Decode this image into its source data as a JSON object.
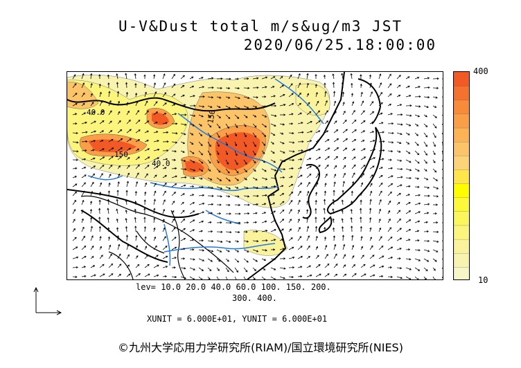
{
  "title": "U-V&Dust total m/s&ug/m3 JST",
  "timestamp": "2020/06/25.18:00:00",
  "colorbar": {
    "max_label": "400",
    "min_label": "10",
    "colors": [
      "#f7f6c9",
      "#f8f4b0",
      "#faf39b",
      "#fbf57d",
      "#fbf65c",
      "#fdf93a",
      "#fffc00",
      "#ffe54c",
      "#fdd37a",
      "#fcc468",
      "#fbb356",
      "#fa9f47",
      "#f88b3a",
      "#f5722e",
      "#f15a24"
    ]
  },
  "levels_line1": "lev= 10.0 20.0 40.0 60.0 100. 150. 200.",
  "levels_line2": "300. 400.",
  "unit_text": "XUNIT = 6.000E+01, YUNIT = 6.000E+01",
  "contour_labels": [
    "150",
    "150",
    "40.0",
    "40.0"
  ],
  "copyright": "©九州大学応用力学研究所(RIAM)/国立環境研究所(NIES)"
}
